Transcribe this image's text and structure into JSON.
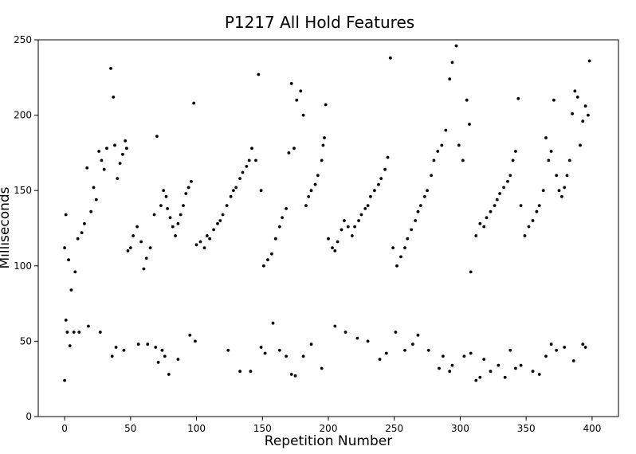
{
  "chart_data": {
    "type": "scatter",
    "title": "P1217 All Hold Features",
    "xlabel": "Repetition Number",
    "ylabel": "Milliseconds",
    "xlim": [
      -20,
      420
    ],
    "ylim": [
      0,
      250
    ],
    "xticks": [
      "0",
      "50",
      "100",
      "150",
      "200",
      "250",
      "300",
      "350",
      "400"
    ],
    "yticks": [
      "0",
      "50",
      "100",
      "150",
      "200",
      "250"
    ],
    "grid": false,
    "marker_color": "#000000",
    "series": [
      {
        "points": [
          [
            0,
            24
          ],
          [
            0,
            112
          ],
          [
            1,
            134
          ],
          [
            3,
            104
          ],
          [
            5,
            84
          ],
          [
            8,
            96
          ],
          [
            10,
            118
          ],
          [
            13,
            122
          ],
          [
            15,
            128
          ],
          [
            17,
            165
          ],
          [
            20,
            136
          ],
          [
            22,
            152
          ],
          [
            24,
            144
          ],
          [
            26,
            176
          ],
          [
            28,
            170
          ],
          [
            30,
            164
          ],
          [
            32,
            178
          ],
          [
            35,
            231
          ],
          [
            37,
            212
          ],
          [
            38,
            180
          ],
          [
            40,
            158
          ],
          [
            42,
            168
          ],
          [
            44,
            174
          ],
          [
            46,
            183
          ],
          [
            47,
            178
          ],
          [
            48,
            110
          ],
          [
            50,
            112
          ],
          [
            52,
            120
          ],
          [
            55,
            126
          ],
          [
            58,
            116
          ],
          [
            60,
            98
          ],
          [
            62,
            105
          ],
          [
            65,
            112
          ],
          [
            68,
            134
          ],
          [
            70,
            186
          ],
          [
            73,
            140
          ],
          [
            75,
            150
          ],
          [
            77,
            146
          ],
          [
            78,
            138
          ],
          [
            80,
            132
          ],
          [
            82,
            126
          ],
          [
            84,
            120
          ],
          [
            86,
            128
          ],
          [
            88,
            134
          ],
          [
            90,
            140
          ],
          [
            92,
            148
          ],
          [
            94,
            152
          ],
          [
            96,
            156
          ],
          [
            98,
            208
          ],
          [
            100,
            114
          ],
          [
            103,
            116
          ],
          [
            106,
            112
          ],
          [
            108,
            120
          ],
          [
            110,
            118
          ],
          [
            113,
            124
          ],
          [
            116,
            128
          ],
          [
            118,
            130
          ],
          [
            120,
            134
          ],
          [
            123,
            140
          ],
          [
            126,
            146
          ],
          [
            128,
            150
          ],
          [
            130,
            152
          ],
          [
            133,
            158
          ],
          [
            135,
            162
          ],
          [
            138,
            166
          ],
          [
            140,
            170
          ],
          [
            142,
            178
          ],
          [
            145,
            170
          ],
          [
            147,
            227
          ],
          [
            149,
            150
          ],
          [
            151,
            100
          ],
          [
            154,
            104
          ],
          [
            157,
            108
          ],
          [
            160,
            118
          ],
          [
            163,
            126
          ],
          [
            165,
            132
          ],
          [
            168,
            138
          ],
          [
            170,
            175
          ],
          [
            172,
            221
          ],
          [
            174,
            178
          ],
          [
            176,
            210
          ],
          [
            179,
            216
          ],
          [
            181,
            200
          ],
          [
            183,
            140
          ],
          [
            185,
            146
          ],
          [
            187,
            150
          ],
          [
            190,
            154
          ],
          [
            192,
            160
          ],
          [
            195,
            170
          ],
          [
            196,
            180
          ],
          [
            197,
            185
          ],
          [
            198,
            207
          ],
          [
            200,
            118
          ],
          [
            203,
            112
          ],
          [
            205,
            110
          ],
          [
            207,
            116
          ],
          [
            210,
            124
          ],
          [
            212,
            130
          ],
          [
            215,
            126
          ],
          [
            218,
            120
          ],
          [
            220,
            126
          ],
          [
            223,
            130
          ],
          [
            225,
            134
          ],
          [
            228,
            138
          ],
          [
            230,
            140
          ],
          [
            232,
            146
          ],
          [
            235,
            150
          ],
          [
            238,
            154
          ],
          [
            240,
            158
          ],
          [
            243,
            164
          ],
          [
            245,
            172
          ],
          [
            247,
            238
          ],
          [
            249,
            112
          ],
          [
            252,
            100
          ],
          [
            255,
            106
          ],
          [
            258,
            112
          ],
          [
            260,
            118
          ],
          [
            263,
            124
          ],
          [
            266,
            130
          ],
          [
            268,
            136
          ],
          [
            270,
            140
          ],
          [
            273,
            146
          ],
          [
            275,
            150
          ],
          [
            278,
            160
          ],
          [
            280,
            170
          ],
          [
            283,
            176
          ],
          [
            286,
            180
          ],
          [
            289,
            190
          ],
          [
            292,
            224
          ],
          [
            294,
            235
          ],
          [
            297,
            246
          ],
          [
            299,
            180
          ],
          [
            302,
            170
          ],
          [
            305,
            210
          ],
          [
            307,
            194
          ],
          [
            308,
            96
          ],
          [
            312,
            120
          ],
          [
            315,
            128
          ],
          [
            318,
            126
          ],
          [
            320,
            132
          ],
          [
            323,
            136
          ],
          [
            326,
            140
          ],
          [
            328,
            144
          ],
          [
            330,
            148
          ],
          [
            333,
            152
          ],
          [
            336,
            156
          ],
          [
            338,
            160
          ],
          [
            340,
            170
          ],
          [
            342,
            176
          ],
          [
            344,
            211
          ],
          [
            346,
            140
          ],
          [
            349,
            120
          ],
          [
            352,
            126
          ],
          [
            355,
            130
          ],
          [
            358,
            136
          ],
          [
            360,
            140
          ],
          [
            363,
            150
          ],
          [
            365,
            185
          ],
          [
            367,
            170
          ],
          [
            369,
            176
          ],
          [
            371,
            210
          ],
          [
            373,
            160
          ],
          [
            375,
            150
          ],
          [
            377,
            146
          ],
          [
            379,
            152
          ],
          [
            381,
            160
          ],
          [
            383,
            170
          ],
          [
            385,
            201
          ],
          [
            387,
            216
          ],
          [
            389,
            212
          ],
          [
            391,
            180
          ],
          [
            393,
            196
          ],
          [
            395,
            206
          ],
          [
            397,
            200
          ],
          [
            398,
            236
          ],
          [
            1,
            64
          ],
          [
            2,
            56
          ],
          [
            4,
            47
          ],
          [
            7,
            56
          ],
          [
            11,
            56
          ],
          [
            18,
            60
          ],
          [
            27,
            56
          ],
          [
            36,
            40
          ],
          [
            39,
            46
          ],
          [
            45,
            44
          ],
          [
            56,
            48
          ],
          [
            63,
            48
          ],
          [
            69,
            46
          ],
          [
            71,
            36
          ],
          [
            74,
            44
          ],
          [
            76,
            40
          ],
          [
            79,
            28
          ],
          [
            86,
            38
          ],
          [
            95,
            54
          ],
          [
            99,
            50
          ],
          [
            124,
            44
          ],
          [
            133,
            30
          ],
          [
            141,
            30
          ],
          [
            149,
            46
          ],
          [
            152,
            42
          ],
          [
            158,
            62
          ],
          [
            163,
            44
          ],
          [
            168,
            40
          ],
          [
            172,
            28
          ],
          [
            175,
            27
          ],
          [
            181,
            40
          ],
          [
            187,
            48
          ],
          [
            195,
            32
          ],
          [
            205,
            60
          ],
          [
            213,
            56
          ],
          [
            222,
            52
          ],
          [
            230,
            50
          ],
          [
            239,
            38
          ],
          [
            244,
            42
          ],
          [
            251,
            56
          ],
          [
            258,
            44
          ],
          [
            264,
            48
          ],
          [
            268,
            54
          ],
          [
            276,
            44
          ],
          [
            284,
            32
          ],
          [
            287,
            40
          ],
          [
            292,
            30
          ],
          [
            294,
            34
          ],
          [
            303,
            40
          ],
          [
            308,
            42
          ],
          [
            312,
            24
          ],
          [
            315,
            26
          ],
          [
            318,
            38
          ],
          [
            323,
            30
          ],
          [
            329,
            34
          ],
          [
            334,
            26
          ],
          [
            338,
            44
          ],
          [
            342,
            32
          ],
          [
            346,
            34
          ],
          [
            355,
            30
          ],
          [
            360,
            28
          ],
          [
            365,
            40
          ],
          [
            369,
            48
          ],
          [
            373,
            44
          ],
          [
            379,
            46
          ],
          [
            386,
            37
          ],
          [
            393,
            48
          ],
          [
            395,
            46
          ]
        ]
      }
    ]
  }
}
